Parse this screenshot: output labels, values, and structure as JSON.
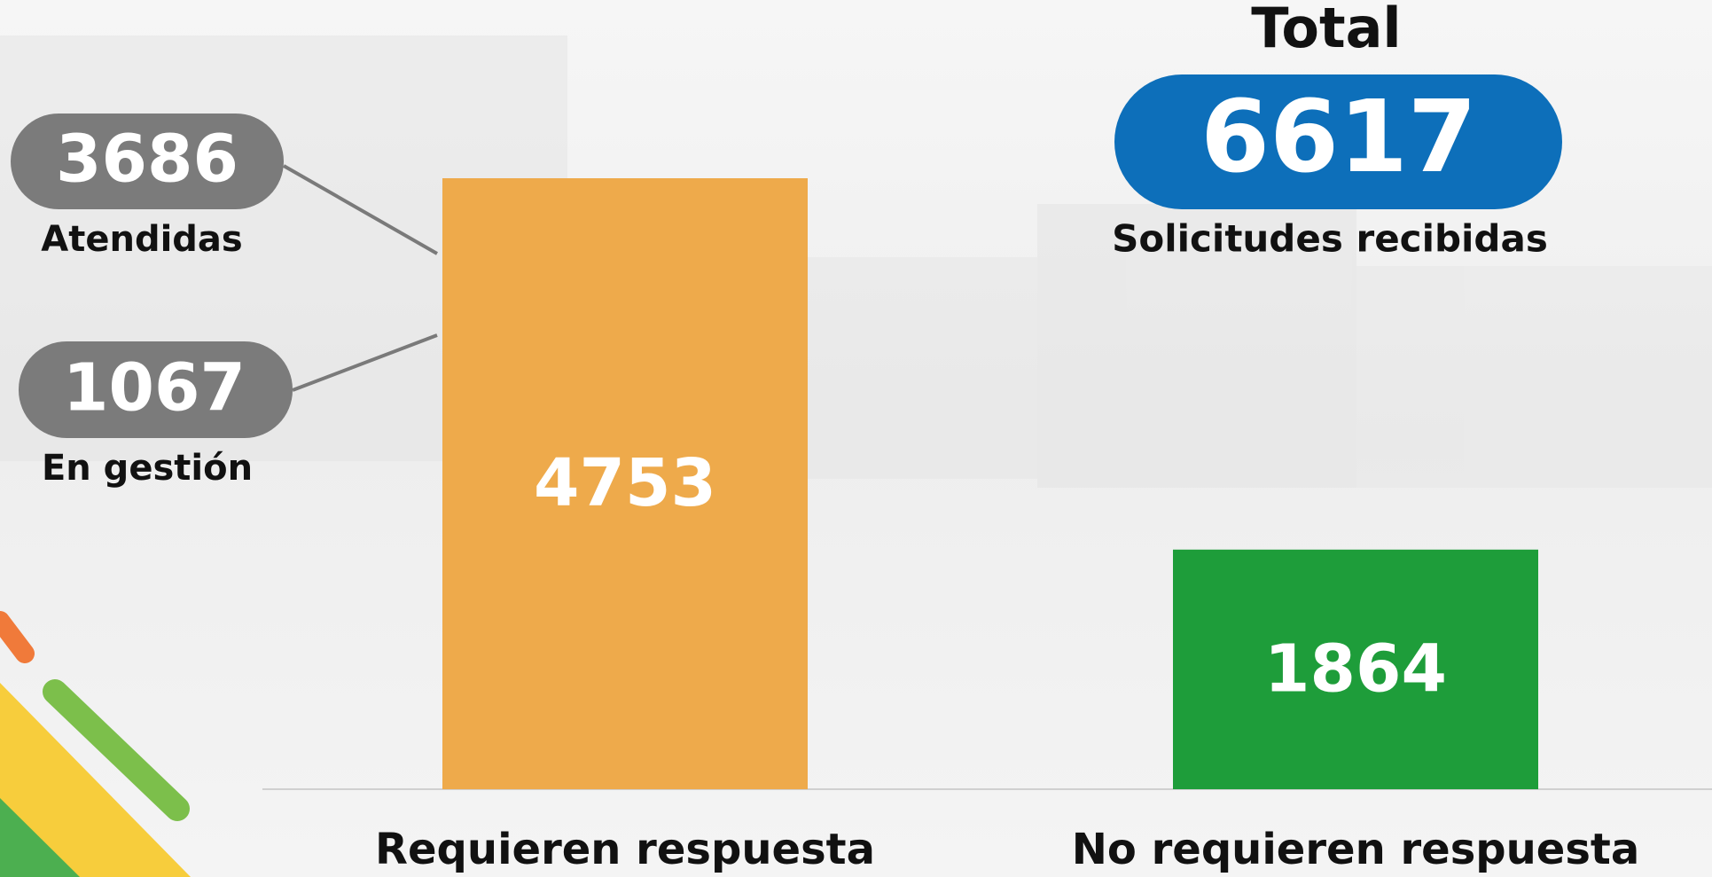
{
  "chart_data": {
    "type": "bar",
    "categories": [
      "Requieren respuesta",
      "No requieren respuesta"
    ],
    "values": [
      4753,
      1864
    ],
    "colors": [
      "#eeaa4b",
      "#1e9d3a"
    ],
    "total": {
      "title": "Total",
      "value": 6617,
      "label": "Solicitudes recibidas",
      "color": "#0d6fba"
    },
    "breakdown": [
      {
        "value": 3686,
        "label": "Atendidas"
      },
      {
        "value": 1067,
        "label": "En gestión"
      }
    ]
  }
}
